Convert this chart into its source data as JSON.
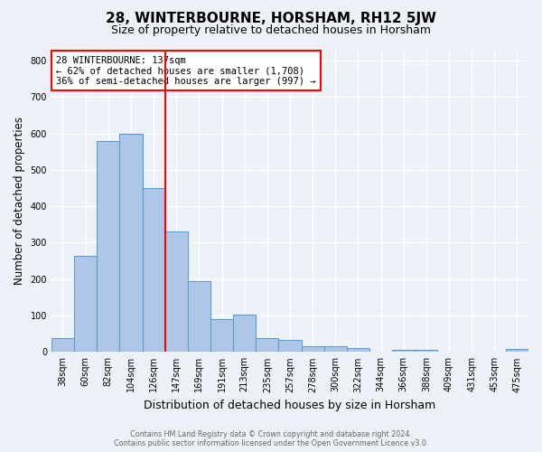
{
  "title": "28, WINTERBOURNE, HORSHAM, RH12 5JW",
  "subtitle": "Size of property relative to detached houses in Horsham",
  "xlabel": "Distribution of detached houses by size in Horsham",
  "ylabel": "Number of detached properties",
  "categories": [
    "38sqm",
    "60sqm",
    "82sqm",
    "104sqm",
    "126sqm",
    "147sqm",
    "169sqm",
    "191sqm",
    "213sqm",
    "235sqm",
    "257sqm",
    "278sqm",
    "300sqm",
    "322sqm",
    "344sqm",
    "366sqm",
    "388sqm",
    "409sqm",
    "431sqm",
    "453sqm",
    "475sqm"
  ],
  "values": [
    37,
    265,
    580,
    600,
    450,
    330,
    195,
    90,
    103,
    37,
    32,
    15,
    15,
    10,
    0,
    5,
    5,
    0,
    0,
    0,
    7
  ],
  "bar_color": "#aec6e8",
  "bar_edge_color": "#5a9fd4",
  "annotation_line1": "28 WINTERBOURNE: 137sqm",
  "annotation_line2": "← 62% of detached houses are smaller (1,708)",
  "annotation_line3": "36% of semi-detached houses are larger (997) →",
  "ylim": [
    0,
    830
  ],
  "yticks": [
    0,
    100,
    200,
    300,
    400,
    500,
    600,
    700,
    800
  ],
  "footer_line1": "Contains HM Land Registry data © Crown copyright and database right 2024.",
  "footer_line2": "Contains public sector information licensed under the Open Government Licence v3.0.",
  "background_color": "#eef2f8",
  "title_fontsize": 11,
  "subtitle_fontsize": 9,
  "tick_fontsize": 7,
  "ylabel_fontsize": 8.5,
  "xlabel_fontsize": 9,
  "annotation_fontsize": 7.5,
  "footer_fontsize": 5.8
}
